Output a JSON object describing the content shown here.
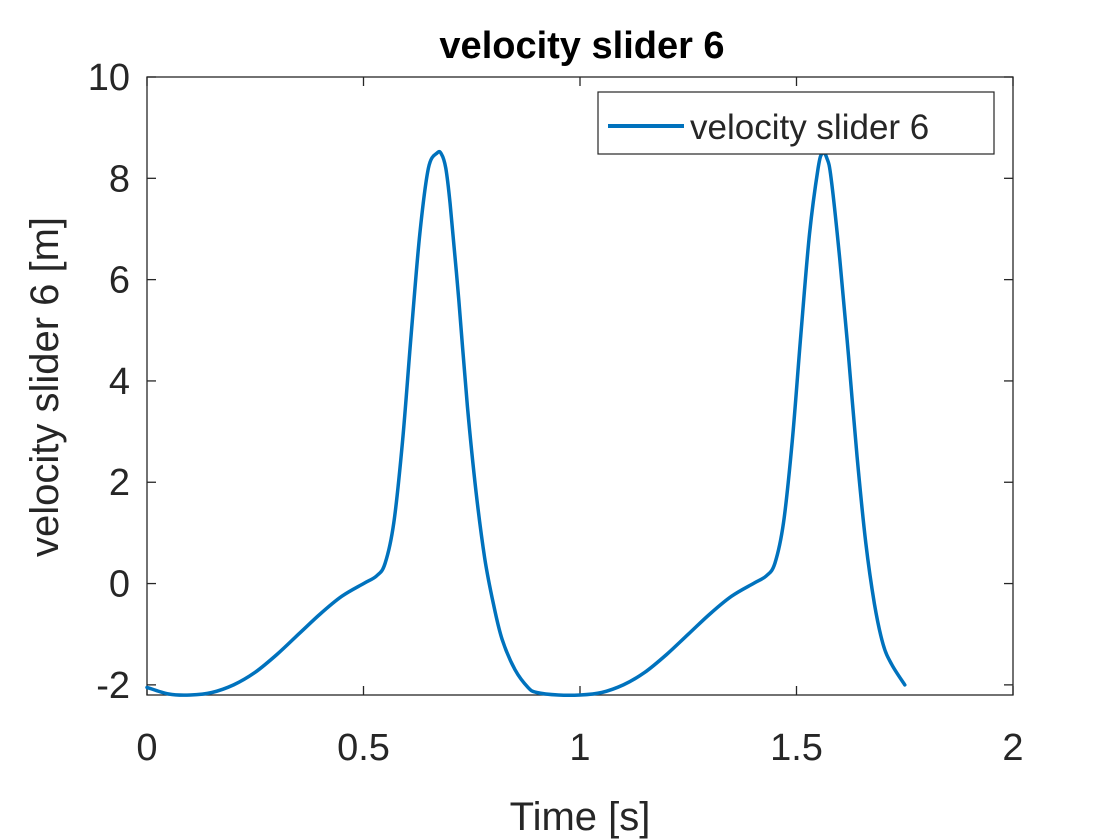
{
  "chart_data": {
    "type": "line",
    "title": "velocity slider 6",
    "xlabel": "Time [s]",
    "ylabel": "velocity slider 6 [m]",
    "xlim": [
      0,
      2
    ],
    "ylim": [
      -2.2,
      10
    ],
    "xticks": [
      0,
      0.5,
      1,
      1.5,
      2
    ],
    "xtick_labels": [
      "0",
      "0.5",
      "1",
      "1.5",
      "2"
    ],
    "yticks": [
      -2,
      0,
      2,
      4,
      6,
      8,
      10
    ],
    "ytick_labels": [
      "-2",
      "0",
      "2",
      "4",
      "6",
      "8",
      "10"
    ],
    "grid": false,
    "legend_position": "top-right",
    "series": [
      {
        "name": "velocity slider 6",
        "color": "#0072BD",
        "x": [
          0,
          0.05,
          0.1,
          0.15,
          0.2,
          0.25,
          0.3,
          0.35,
          0.4,
          0.45,
          0.5,
          0.53,
          0.55,
          0.57,
          0.59,
          0.61,
          0.63,
          0.65,
          0.67,
          0.68,
          0.69,
          0.7,
          0.72,
          0.74,
          0.76,
          0.78,
          0.8,
          0.82,
          0.85,
          0.88,
          0.9,
          0.95,
          1.0,
          1.05,
          1.1,
          1.15,
          1.2,
          1.25,
          1.3,
          1.35,
          1.4,
          1.43,
          1.45,
          1.47,
          1.49,
          1.51,
          1.53,
          1.55,
          1.56,
          1.57,
          1.58,
          1.6,
          1.62,
          1.64,
          1.66,
          1.68,
          1.7,
          1.72,
          1.75
        ],
        "y": [
          -2.05,
          -2.18,
          -2.2,
          -2.15,
          -2.0,
          -1.75,
          -1.4,
          -1.0,
          -0.6,
          -0.25,
          0.0,
          0.15,
          0.4,
          1.2,
          2.8,
          4.9,
          6.9,
          8.2,
          8.5,
          8.48,
          8.2,
          7.5,
          5.6,
          3.5,
          1.8,
          0.5,
          -0.4,
          -1.1,
          -1.7,
          -2.05,
          -2.15,
          -2.2,
          -2.2,
          -2.15,
          -2.0,
          -1.75,
          -1.4,
          -1.0,
          -0.6,
          -0.25,
          0.0,
          0.15,
          0.4,
          1.2,
          2.8,
          4.9,
          6.9,
          8.2,
          8.5,
          8.4,
          8.0,
          6.4,
          4.5,
          2.5,
          0.8,
          -0.4,
          -1.2,
          -1.6,
          -2.0
        ]
      }
    ]
  }
}
